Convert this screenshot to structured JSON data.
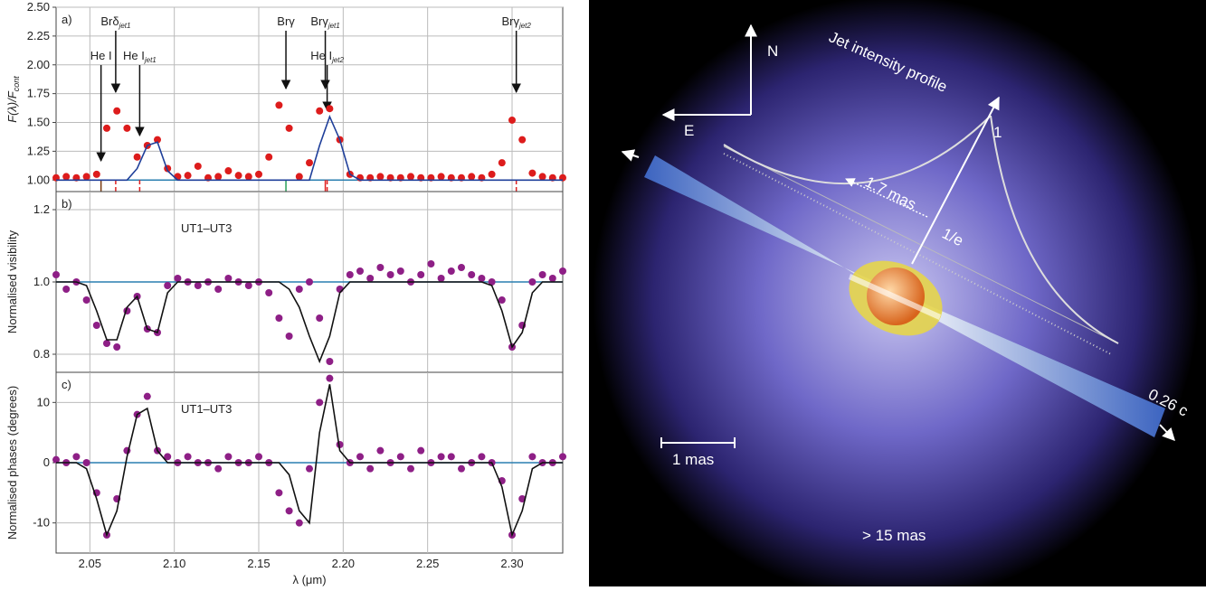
{
  "chart_data": [
    {
      "type": "scatter",
      "panel_label": "a)",
      "ylabel": [
        "F(λ)/F",
        "cont"
      ],
      "xlim": [
        2.03,
        2.33
      ],
      "xticks": [
        2.05,
        2.1,
        2.15,
        2.2,
        2.25,
        2.3
      ],
      "ylim": [
        0.9,
        2.5
      ],
      "yticks": [
        {
          "value": 1,
          "label": "1.00"
        },
        {
          "value": 1.25,
          "label": "1.25"
        },
        {
          "value": 1.5,
          "label": "1.50"
        },
        {
          "value": 1.75,
          "label": "1.75"
        },
        {
          "value": 2,
          "label": "2.00"
        },
        {
          "value": 2.25,
          "label": "2.25"
        },
        {
          "value": 2.5,
          "label": "2.50"
        }
      ],
      "grid": true,
      "reference_line": 1,
      "reference_color": "#2a7fb0",
      "annotations": [
        {
          "text": "He I",
          "x": 2.0566,
          "color": "#7a3b10"
        },
        {
          "text": "Brδ",
          "sub": "jet1",
          "x": 2.0653,
          "color": "#e02020"
        },
        {
          "text": "He I",
          "sub": "jet1",
          "x": 2.0795,
          "color": "#e02020"
        },
        {
          "text": "Brγ",
          "x": 2.1661,
          "color": "#2aa05a"
        },
        {
          "text": "Brγ",
          "sub": "jet1",
          "x": 2.1894,
          "color": "#e02020"
        },
        {
          "text": "He I",
          "sub": "jet2",
          "x": 2.1905,
          "color": "#e02020"
        },
        {
          "text": "Brγ",
          "sub": "jet2",
          "x": 2.3025,
          "color": "#e02020"
        }
      ],
      "x": [
        2.03,
        2.036,
        2.042,
        2.048,
        2.054,
        2.06,
        2.066,
        2.072,
        2.078,
        2.084,
        2.09,
        2.096,
        2.102,
        2.108,
        2.114,
        2.12,
        2.126,
        2.132,
        2.138,
        2.144,
        2.15,
        2.156,
        2.162,
        2.168,
        2.174,
        2.18,
        2.186,
        2.192,
        2.198,
        2.204,
        2.21,
        2.216,
        2.222,
        2.228,
        2.234,
        2.24,
        2.246,
        2.252,
        2.258,
        2.264,
        2.27,
        2.276,
        2.282,
        2.288,
        2.294,
        2.3,
        2.306,
        2.312,
        2.318,
        2.324,
        2.33
      ],
      "series": [
        {
          "kind": "points",
          "color": "#dd1c1c",
          "values": [
            1.02,
            1.03,
            1.02,
            1.03,
            1.05,
            1.45,
            1.6,
            1.45,
            1.2,
            1.3,
            1.35,
            1.1,
            1.03,
            1.04,
            1.12,
            1.02,
            1.03,
            1.08,
            1.04,
            1.03,
            1.05,
            1.2,
            1.65,
            1.45,
            1.03,
            1.15,
            1.6,
            1.62,
            1.35,
            1.05,
            1.02,
            1.02,
            1.03,
            1.02,
            1.02,
            1.03,
            1.02,
            1.02,
            1.03,
            1.02,
            1.02,
            1.03,
            1.02,
            1.05,
            1.15,
            1.52,
            1.35,
            1.06,
            1.03,
            1.02,
            1.02
          ]
        },
        {
          "kind": "line",
          "color": "#1f3f9a",
          "values": [
            1,
            1,
            1,
            1,
            1,
            1,
            1,
            1,
            1.1,
            1.3,
            1.33,
            1.08,
            1,
            1,
            1,
            1,
            1,
            1,
            1,
            1,
            1,
            1,
            1,
            1,
            1,
            1,
            1.3,
            1.55,
            1.35,
            1.05,
            1,
            1,
            1,
            1,
            1,
            1,
            1,
            1,
            1,
            1,
            1,
            1,
            1,
            1,
            1,
            1,
            1,
            1,
            1,
            1,
            1
          ]
        }
      ]
    },
    {
      "type": "scatter",
      "panel_label": "b)",
      "ylabel": [
        "Normalised visibility"
      ],
      "note": "UT1–UT3",
      "xlim": [
        2.03,
        2.33
      ],
      "xticks": [
        2.05,
        2.1,
        2.15,
        2.2,
        2.25,
        2.3
      ],
      "ylim": [
        0.75,
        1.25
      ],
      "yticks": [
        0.8,
        {
          "value": 1,
          "label": "1.0"
        },
        1.2
      ],
      "grid": true,
      "reference_line": 1,
      "reference_color": "#2a7fb0",
      "x": [
        2.03,
        2.036,
        2.042,
        2.048,
        2.054,
        2.06,
        2.066,
        2.072,
        2.078,
        2.084,
        2.09,
        2.096,
        2.102,
        2.108,
        2.114,
        2.12,
        2.126,
        2.132,
        2.138,
        2.144,
        2.15,
        2.156,
        2.162,
        2.168,
        2.174,
        2.18,
        2.186,
        2.192,
        2.198,
        2.204,
        2.21,
        2.216,
        2.222,
        2.228,
        2.234,
        2.24,
        2.246,
        2.252,
        2.258,
        2.264,
        2.27,
        2.276,
        2.282,
        2.288,
        2.294,
        2.3,
        2.306,
        2.312,
        2.318,
        2.324,
        2.33
      ],
      "series": [
        {
          "kind": "points",
          "color": "#8e1f86",
          "values": [
            1.02,
            0.98,
            1,
            0.95,
            0.88,
            0.83,
            0.82,
            0.92,
            0.96,
            0.87,
            0.86,
            0.99,
            1.01,
            1,
            0.99,
            1,
            0.98,
            1.01,
            1,
            0.99,
            1,
            0.97,
            0.9,
            0.85,
            0.98,
            1,
            0.9,
            0.78,
            0.98,
            1.02,
            1.03,
            1.01,
            1.04,
            1.02,
            1.03,
            1,
            1.02,
            1.05,
            1.01,
            1.03,
            1.04,
            1.02,
            1.01,
            1,
            0.95,
            0.82,
            0.88,
            1,
            1.02,
            1.01,
            1.03
          ]
        },
        {
          "kind": "line",
          "color": "#111111",
          "values": [
            1,
            1,
            1,
            0.99,
            0.92,
            0.84,
            0.84,
            0.93,
            0.96,
            0.87,
            0.86,
            0.97,
            1,
            1,
            1,
            1,
            1,
            1,
            1,
            1,
            1,
            1,
            1,
            0.98,
            0.93,
            0.85,
            0.78,
            0.85,
            0.97,
            1,
            1,
            1,
            1,
            1,
            1,
            1,
            1,
            1,
            1,
            1,
            1,
            1,
            1,
            0.99,
            0.92,
            0.82,
            0.86,
            0.97,
            1,
            1,
            1
          ]
        }
      ]
    },
    {
      "type": "scatter",
      "panel_label": "c)",
      "ylabel": [
        "Normalised phases (degrees)"
      ],
      "note": "UT1–UT3",
      "xlabel": "λ (μm)",
      "xlim": [
        2.03,
        2.33
      ],
      "xticks": [
        {
          "value": 2.05,
          "label": "2.05"
        },
        {
          "value": 2.1,
          "label": "2.10"
        },
        {
          "value": 2.15,
          "label": "2.15"
        },
        {
          "value": 2.2,
          "label": "2.20"
        },
        {
          "value": 2.25,
          "label": "2.25"
        },
        {
          "value": 2.3,
          "label": "2.30"
        }
      ],
      "ylim": [
        -15,
        15
      ],
      "yticks": [
        -10,
        0,
        10
      ],
      "grid": true,
      "reference_line": 0,
      "reference_color": "#2a7fb0",
      "x": [
        2.03,
        2.036,
        2.042,
        2.048,
        2.054,
        2.06,
        2.066,
        2.072,
        2.078,
        2.084,
        2.09,
        2.096,
        2.102,
        2.108,
        2.114,
        2.12,
        2.126,
        2.132,
        2.138,
        2.144,
        2.15,
        2.156,
        2.162,
        2.168,
        2.174,
        2.18,
        2.186,
        2.192,
        2.198,
        2.204,
        2.21,
        2.216,
        2.222,
        2.228,
        2.234,
        2.24,
        2.246,
        2.252,
        2.258,
        2.264,
        2.27,
        2.276,
        2.282,
        2.288,
        2.294,
        2.3,
        2.306,
        2.312,
        2.318,
        2.324,
        2.33
      ],
      "series": [
        {
          "kind": "points",
          "color": "#8e1f86",
          "values": [
            0.5,
            0,
            1,
            0,
            -5,
            -12,
            -6,
            2,
            8,
            11,
            2,
            1,
            0,
            1,
            0,
            0,
            -1,
            1,
            0,
            0,
            1,
            0,
            -5,
            -8,
            -10,
            -1,
            10,
            14,
            3,
            0,
            1,
            -1,
            2,
            0,
            1,
            -1,
            2,
            0,
            1,
            1,
            -1,
            0,
            1,
            0,
            -3,
            -12,
            -6,
            1,
            0,
            0,
            1
          ]
        },
        {
          "kind": "line",
          "color": "#111111",
          "values": [
            0,
            0,
            0,
            -1,
            -6,
            -12,
            -8,
            1,
            8,
            9,
            2,
            0,
            0,
            0,
            0,
            0,
            0,
            0,
            0,
            0,
            0,
            0,
            0,
            -2,
            -8,
            -10,
            5,
            13,
            2,
            0,
            0,
            0,
            0,
            0,
            0,
            0,
            0,
            0,
            0,
            0,
            0,
            0,
            0,
            0,
            -4,
            -12,
            -8,
            -1,
            0,
            0,
            0
          ]
        }
      ]
    }
  ],
  "illustration": {
    "north": "N",
    "east": "E",
    "profile_title": "Jet intensity profile",
    "peak": "1",
    "width": "1.7 mas",
    "level": "1/e",
    "speed": "0.26 c",
    "scale": "1 mas",
    "extent": "> 15 mas"
  }
}
